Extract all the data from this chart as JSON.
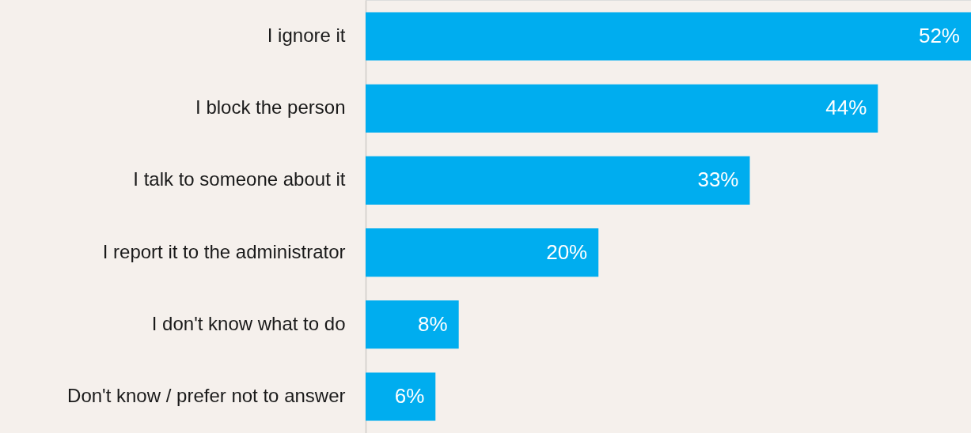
{
  "chart_data": {
    "type": "bar",
    "orientation": "horizontal",
    "categories": [
      "I ignore it",
      "I block the person",
      "I talk to someone about it",
      "I report it to the administrator",
      "I don't know what to do",
      "Don't know / prefer not to answer"
    ],
    "values": [
      52,
      44,
      33,
      20,
      8,
      6
    ],
    "value_labels": [
      "52%",
      "44%",
      "33%",
      "20%",
      "8%",
      "6%"
    ],
    "color": "#00adef",
    "xlim": [
      0,
      52
    ],
    "tick_labels": "y"
  }
}
